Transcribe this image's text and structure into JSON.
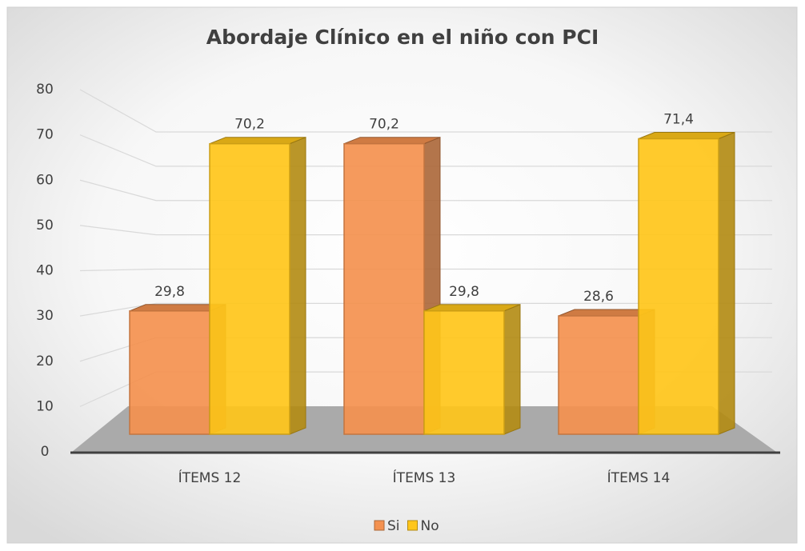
{
  "chart_data": {
    "type": "bar3d",
    "title": "Abordaje Clínico en el niño con PCI",
    "categories": [
      "ÍTEMS 12",
      "ÍTEMS 13",
      "ÍTEMS 14"
    ],
    "series": [
      {
        "name": "Si",
        "color": "#f4914f",
        "values": [
          29.8,
          70.2,
          28.6
        ],
        "value_labels": [
          "29,8",
          "70,2",
          "28,6"
        ]
      },
      {
        "name": "No",
        "color": "#ffc61a",
        "values": [
          70.2,
          29.8,
          71.4
        ],
        "value_labels": [
          "70,2",
          "29,8",
          "71,4"
        ]
      }
    ],
    "ylim": [
      0,
      80
    ],
    "yticks": [
      0,
      10,
      20,
      30,
      40,
      50,
      60,
      70,
      80
    ],
    "grid": true,
    "legend": "bottom"
  }
}
